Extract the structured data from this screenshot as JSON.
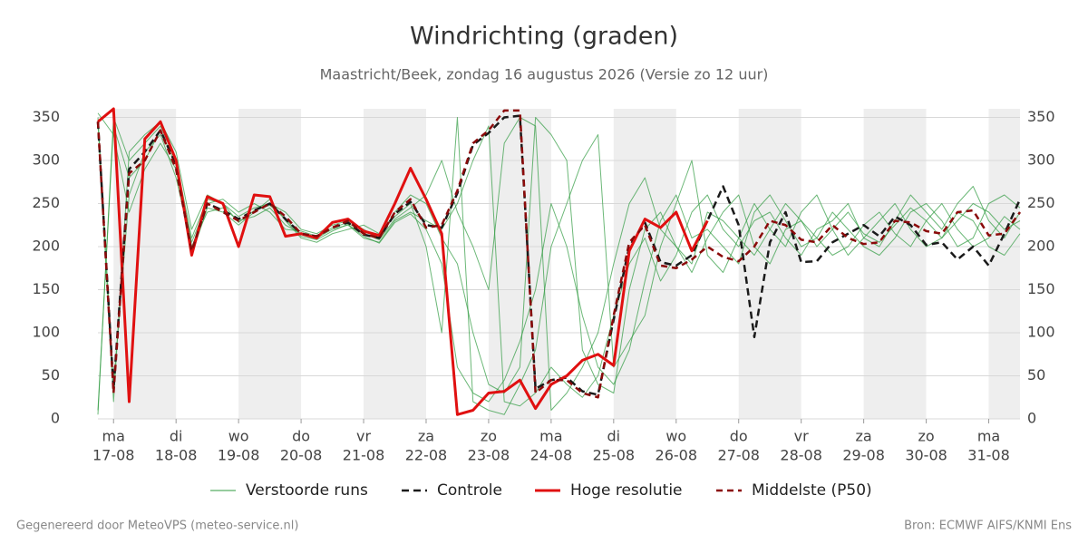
{
  "chart_data": {
    "type": "line",
    "title": "Windrichting (graden)",
    "subtitle": "Maastricht/Beek, zondag 16 augustus 2026 (Versie zo 12 uur)",
    "footer_left": "Gegenereerd door MeteoVPS (meteo-service.nl)",
    "footer_right": "Bron: ECMWF AIFS/KNMI Ens",
    "x": [
      -0.25,
      0,
      0.25,
      0.5,
      0.75,
      1,
      1.25,
      1.5,
      1.75,
      2,
      2.25,
      2.5,
      2.75,
      3,
      3.25,
      3.5,
      3.75,
      4,
      4.25,
      4.5,
      4.75,
      5,
      5.25,
      5.5,
      5.75,
      6,
      6.25,
      6.5,
      6.75,
      7,
      7.25,
      7.5,
      7.75,
      8,
      8.25,
      8.5,
      8.75,
      9,
      9.25,
      9.5,
      9.75,
      10,
      10.25,
      10.5,
      10.75,
      11,
      11.25,
      11.5,
      11.75,
      12,
      12.25,
      12.5,
      12.75,
      13,
      13.25,
      13.5,
      13.75,
      14,
      14.25,
      14.5
    ],
    "xlim": [
      -0.25,
      14.5
    ],
    "xticks": [
      {
        "value": 0,
        "label": "ma"
      },
      {
        "value": 1,
        "label": "di"
      },
      {
        "value": 2,
        "label": "wo"
      },
      {
        "value": 3,
        "label": "do"
      },
      {
        "value": 4,
        "label": "vr"
      },
      {
        "value": 5,
        "label": "za"
      },
      {
        "value": 6,
        "label": "zo"
      },
      {
        "value": 7,
        "label": "ma"
      },
      {
        "value": 8,
        "label": "di"
      },
      {
        "value": 9,
        "label": "wo"
      },
      {
        "value": 10,
        "label": "do"
      },
      {
        "value": 11,
        "label": "vr"
      },
      {
        "value": 12,
        "label": "za"
      },
      {
        "value": 13,
        "label": "zo"
      },
      {
        "value": 14,
        "label": "ma"
      }
    ],
    "xtick_dates": [
      "17-08",
      "18-08",
      "19-08",
      "20-08",
      "21-08",
      "22-08",
      "23-08",
      "24-08",
      "25-08",
      "26-08",
      "27-08",
      "28-08",
      "29-08",
      "30-08",
      "31-08"
    ],
    "ylim": [
      0,
      360
    ],
    "yticks": [
      0,
      50,
      100,
      150,
      200,
      250,
      300,
      350
    ],
    "grid": true,
    "ensemble": {
      "name": "Verstoorde runs",
      "color": "#2e9a3e",
      "members": [
        [
          350,
          40,
          260,
          310,
          330,
          280,
          200,
          240,
          245,
          230,
          235,
          245,
          225,
          215,
          210,
          220,
          225,
          210,
          205,
          230,
          240,
          230,
          220,
          250,
          300,
          340,
          20,
          15,
          30,
          60,
          40,
          25,
          50,
          120,
          180,
          210,
          160,
          190,
          240,
          260,
          220,
          200,
          230,
          240,
          210,
          190,
          220,
          230,
          250,
          210,
          200,
          230,
          260,
          240,
          220,
          250,
          270,
          230,
          210,
          240
        ],
        [
          5,
          350,
          300,
          320,
          340,
          300,
          210,
          255,
          250,
          235,
          245,
          250,
          240,
          220,
          215,
          225,
          230,
          220,
          210,
          240,
          260,
          250,
          210,
          180,
          100,
          40,
          30,
          60,
          350,
          330,
          300,
          80,
          40,
          30,
          150,
          220,
          240,
          200,
          170,
          210,
          240,
          260,
          200,
          180,
          220,
          230,
          210,
          190,
          200,
          225,
          240,
          215,
          200,
          230,
          250,
          220,
          200,
          210,
          235,
          220
        ],
        [
          355,
          330,
          240,
          290,
          320,
          290,
          190,
          245,
          240,
          225,
          240,
          255,
          230,
          210,
          205,
          215,
          220,
          225,
          215,
          235,
          250,
          200,
          100,
          350,
          20,
          10,
          5,
          40,
          80,
          200,
          250,
          300,
          330,
          60,
          90,
          120,
          200,
          250,
          300,
          190,
          170,
          210,
          250,
          220,
          200,
          240,
          260,
          220,
          190,
          210,
          230,
          250,
          220,
          200,
          210,
          240,
          230,
          200,
          190,
          215
        ],
        [
          10,
          340,
          280,
          300,
          335,
          295,
          205,
          250,
          255,
          240,
          250,
          240,
          220,
          218,
          212,
          222,
          228,
          215,
          208,
          232,
          245,
          260,
          300,
          240,
          200,
          150,
          320,
          350,
          340,
          10,
          30,
          60,
          100,
          180,
          250,
          280,
          220,
          200,
          180,
          240,
          230,
          210,
          190,
          220,
          250,
          230,
          200,
          220,
          240,
          215,
          205,
          225,
          245,
          230,
          210,
          230,
          250,
          240,
          220,
          230
        ],
        [
          345,
          20,
          310,
          330,
          345,
          310,
          220,
          260,
          250,
          228,
          242,
          248,
          232,
          212,
          208,
          218,
          226,
          212,
          204,
          228,
          238,
          220,
          180,
          60,
          30,
          20,
          45,
          90,
          150,
          250,
          200,
          120,
          60,
          40,
          80,
          160,
          230,
          260,
          210,
          220,
          200,
          180,
          240,
          260,
          230,
          200,
          210,
          240,
          220,
          200,
          190,
          210,
          240,
          250,
          230,
          200,
          210,
          250,
          260,
          245
        ]
      ]
    },
    "series": [
      {
        "name": "Controle",
        "color": "#1a1a1a",
        "dash": "8,5",
        "width": 2.5,
        "values": [
          345,
          35,
          290,
          310,
          335,
          295,
          195,
          250,
          242,
          232,
          242,
          250,
          232,
          215,
          212,
          222,
          228,
          214,
          210,
          238,
          252,
          225,
          222,
          262,
          318,
          332,
          350,
          352,
          35,
          45,
          48,
          32,
          28,
          115,
          200,
          228,
          182,
          178,
          190,
          230,
          270,
          225,
          95,
          205,
          240,
          182,
          183,
          205,
          215,
          225,
          212,
          235,
          225,
          202,
          205,
          185,
          200,
          178,
          215,
          255
        ]
      },
      {
        "name": "Hoge resolutie",
        "color": "#e01010",
        "dash": "none",
        "width": 3,
        "values": [
          345,
          360,
          20,
          325,
          345,
          300,
          190,
          258,
          250,
          200,
          260,
          258,
          212,
          215,
          210,
          228,
          232,
          218,
          213,
          250,
          291,
          255,
          215,
          5,
          10,
          30,
          32,
          45,
          12,
          40,
          50,
          68,
          75,
          62,
          195,
          232,
          222,
          240,
          195,
          230,
          null,
          null,
          null,
          null,
          null,
          null,
          null,
          null,
          null,
          null,
          null,
          null,
          null,
          null,
          null,
          null,
          null,
          null,
          null,
          null
        ]
      },
      {
        "name": "Middelste (P50)",
        "color": "#8b0a0a",
        "dash": "7,5",
        "width": 2.5,
        "values": [
          345,
          30,
          285,
          300,
          335,
          290,
          195,
          250,
          240,
          230,
          240,
          250,
          235,
          215,
          212,
          222,
          230,
          215,
          210,
          240,
          255,
          222,
          225,
          265,
          320,
          335,
          358,
          358,
          30,
          45,
          45,
          30,
          25,
          120,
          205,
          225,
          178,
          175,
          185,
          200,
          188,
          183,
          200,
          230,
          225,
          208,
          205,
          225,
          210,
          203,
          205,
          230,
          228,
          218,
          215,
          240,
          242,
          213,
          215,
          240
        ]
      }
    ]
  }
}
